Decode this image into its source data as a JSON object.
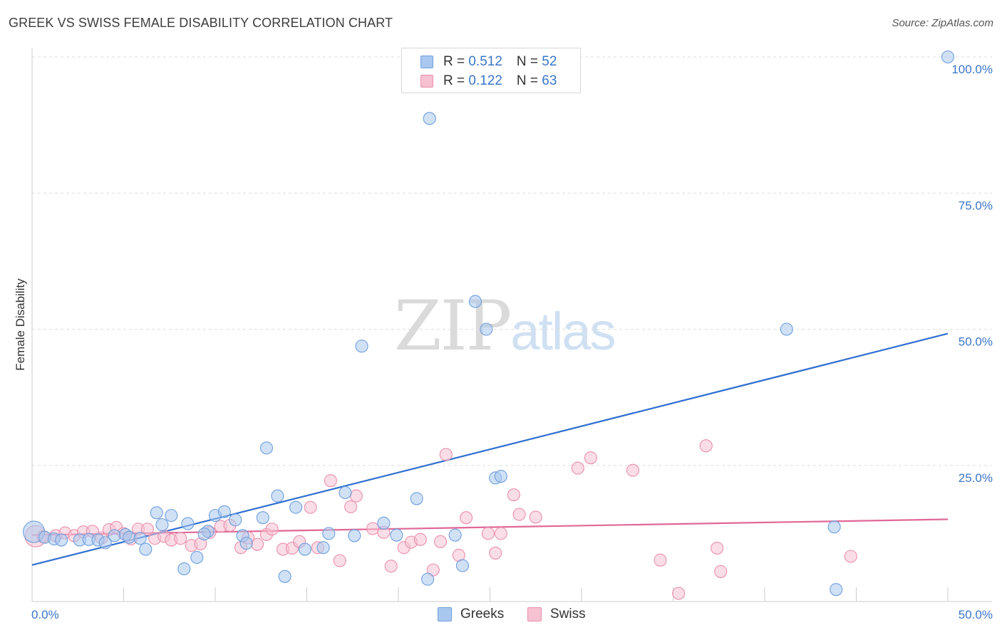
{
  "title": "GREEK VS SWISS FEMALE DISABILITY CORRELATION CHART",
  "source": "Source: ZipAtlas.com",
  "watermark": {
    "zip": "ZIP",
    "atlas": "atlas"
  },
  "legend": {
    "rows": [
      {
        "r_label": "R = ",
        "r_value": "0.512",
        "n_label": "N = ",
        "n_value": "52",
        "color": "#a9c8ef",
        "border": "#6f9fdc"
      },
      {
        "r_label": "R = ",
        "r_value": "0.122",
        "n_label": "N = ",
        "n_value": "63",
        "color": "#f6c1d1",
        "border": "#e990ad"
      }
    ]
  },
  "bottom_legend": {
    "greeks": "Greeks",
    "swiss": "Swiss"
  },
  "colors": {
    "greeks_fill": "#a9c8ef",
    "greeks_stroke": "#6f9fdc",
    "greeks_line": "#2f6fd0",
    "swiss_fill": "#f6c1d1",
    "swiss_stroke": "#e990ad",
    "swiss_line": "#e06896",
    "tick_label": "#3a76c8",
    "grid": "#dddddd"
  },
  "chart_data": {
    "type": "scatter",
    "title": "GREEK VS SWISS FEMALE DISABILITY CORRELATION CHART",
    "xlabel": "",
    "ylabel": "Female Disability",
    "xlim": [
      0,
      50
    ],
    "ylim": [
      0,
      100
    ],
    "x_tick_labels": [
      "0.0%",
      "50.0%"
    ],
    "y_tick_labels": [
      {
        "value": 100,
        "label": "100.0%"
      },
      {
        "value": 75,
        "label": "75.0%"
      },
      {
        "value": 50,
        "label": "50.0%"
      },
      {
        "value": 25,
        "label": "25.0%"
      }
    ],
    "grid": true,
    "series": [
      {
        "name": "Greeks",
        "trend": {
          "x": [
            0,
            50
          ],
          "y": [
            6.7,
            49.2
          ]
        },
        "points": [
          [
            0.1,
            12.8
          ],
          [
            0.7,
            11.8
          ],
          [
            1.2,
            11.5
          ],
          [
            1.6,
            11.3
          ],
          [
            2.6,
            11.3
          ],
          [
            3.1,
            11.4
          ],
          [
            3.6,
            11.3
          ],
          [
            4.0,
            10.8
          ],
          [
            4.5,
            12.1
          ],
          [
            5.1,
            12.3
          ],
          [
            5.3,
            11.8
          ],
          [
            5.9,
            11.6
          ],
          [
            6.2,
            9.6
          ],
          [
            6.8,
            16.3
          ],
          [
            7.1,
            14.1
          ],
          [
            7.6,
            15.8
          ],
          [
            8.3,
            6.0
          ],
          [
            8.5,
            14.3
          ],
          [
            9.0,
            8.1
          ],
          [
            9.6,
            12.9
          ],
          [
            10.0,
            15.8
          ],
          [
            10.5,
            16.5
          ],
          [
            11.1,
            15.0
          ],
          [
            11.5,
            12.1
          ],
          [
            11.7,
            10.7
          ],
          [
            12.6,
            15.4
          ],
          [
            12.8,
            28.2
          ],
          [
            13.4,
            19.4
          ],
          [
            13.8,
            4.6
          ],
          [
            14.4,
            17.3
          ],
          [
            14.9,
            9.6
          ],
          [
            15.9,
            9.9
          ],
          [
            16.2,
            12.5
          ],
          [
            17.1,
            20.0
          ],
          [
            17.6,
            12.1
          ],
          [
            18.0,
            46.9
          ],
          [
            19.2,
            14.4
          ],
          [
            19.9,
            12.2
          ],
          [
            21.0,
            18.9
          ],
          [
            21.6,
            4.1
          ],
          [
            21.7,
            88.7
          ],
          [
            23.1,
            12.2
          ],
          [
            23.5,
            6.6
          ],
          [
            24.2,
            55.1
          ],
          [
            24.8,
            50.0
          ],
          [
            25.3,
            22.7
          ],
          [
            25.6,
            23.0
          ],
          [
            41.2,
            50.0
          ],
          [
            43.8,
            13.7
          ],
          [
            43.9,
            2.2
          ],
          [
            50.0,
            100.0
          ],
          [
            9.4,
            12.4
          ]
        ]
      },
      {
        "name": "Swiss",
        "trend": {
          "x": [
            0,
            50
          ],
          "y": [
            12.2,
            15.1
          ]
        },
        "points": [
          [
            0.2,
            12.0
          ],
          [
            0.6,
            11.9
          ],
          [
            1.3,
            12.1
          ],
          [
            1.8,
            12.6
          ],
          [
            2.3,
            12.1
          ],
          [
            2.8,
            12.8
          ],
          [
            3.3,
            12.9
          ],
          [
            3.8,
            11.7
          ],
          [
            4.2,
            13.2
          ],
          [
            4.6,
            13.6
          ],
          [
            5.0,
            12.5
          ],
          [
            5.4,
            11.5
          ],
          [
            5.8,
            13.3
          ],
          [
            6.3,
            13.3
          ],
          [
            6.7,
            11.6
          ],
          [
            7.2,
            12.0
          ],
          [
            7.6,
            11.3
          ],
          [
            8.1,
            11.6
          ],
          [
            8.7,
            10.3
          ],
          [
            9.2,
            10.6
          ],
          [
            9.7,
            12.7
          ],
          [
            10.3,
            13.8
          ],
          [
            10.8,
            14.0
          ],
          [
            11.4,
            9.9
          ],
          [
            11.8,
            11.7
          ],
          [
            12.3,
            10.5
          ],
          [
            12.8,
            12.3
          ],
          [
            13.1,
            13.3
          ],
          [
            13.7,
            9.6
          ],
          [
            14.2,
            9.8
          ],
          [
            14.6,
            11.0
          ],
          [
            15.2,
            17.3
          ],
          [
            15.6,
            9.9
          ],
          [
            16.3,
            22.2
          ],
          [
            16.8,
            7.5
          ],
          [
            17.4,
            17.4
          ],
          [
            17.7,
            19.4
          ],
          [
            18.6,
            13.4
          ],
          [
            19.2,
            12.7
          ],
          [
            19.6,
            6.5
          ],
          [
            20.3,
            9.9
          ],
          [
            20.7,
            10.9
          ],
          [
            21.2,
            11.4
          ],
          [
            21.9,
            5.8
          ],
          [
            22.3,
            11.0
          ],
          [
            22.6,
            27.0
          ],
          [
            23.3,
            8.5
          ],
          [
            23.7,
            15.4
          ],
          [
            24.9,
            12.5
          ],
          [
            25.3,
            8.9
          ],
          [
            25.6,
            12.5
          ],
          [
            26.3,
            19.6
          ],
          [
            26.6,
            16.0
          ],
          [
            27.5,
            15.5
          ],
          [
            29.8,
            24.5
          ],
          [
            30.5,
            26.4
          ],
          [
            32.8,
            24.1
          ],
          [
            34.3,
            7.6
          ],
          [
            35.3,
            1.5
          ],
          [
            36.8,
            28.6
          ],
          [
            37.4,
            9.8
          ],
          [
            37.6,
            5.5
          ],
          [
            44.7,
            8.3
          ]
        ]
      }
    ]
  }
}
